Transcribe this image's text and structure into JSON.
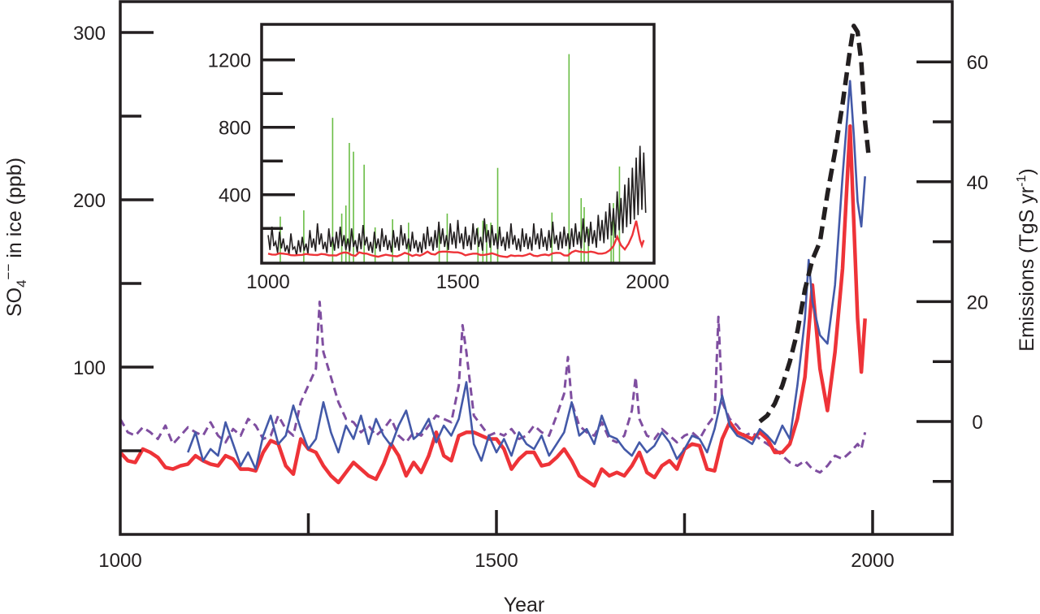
{
  "chart_data": {
    "type": "line",
    "main": {
      "xlabel": "Year",
      "ylabel_left": {
        "base": "SO",
        "sub": "4",
        "sup": "−−",
        "rest": " in ice (ppb)"
      },
      "ylabel_right": {
        "base": "Emissions (TgS yr",
        "sup": "-1",
        "rest": ")"
      },
      "xlim": [
        1000,
        2100
      ],
      "ylim_left": [
        0,
        320
      ],
      "ylim_right": [
        -19,
        70
      ],
      "x_ticks": [
        1000,
        1500,
        2000
      ],
      "x_minor_ticks": [
        1250,
        1750
      ],
      "left_ticks": [
        300,
        200,
        100
      ],
      "left_minor_ticks": [
        250,
        150,
        50
      ],
      "right_ticks": [
        60,
        40,
        20,
        0
      ],
      "right_minor_ticks": [
        50,
        30,
        10,
        -10
      ],
      "series": [
        {
          "name": "red",
          "color": "#ee3338",
          "axis": "left",
          "style": "solid-thick",
          "x": [
            1000,
            1010,
            1020,
            1030,
            1040,
            1050,
            1060,
            1070,
            1080,
            1090,
            1100,
            1110,
            1120,
            1130,
            1140,
            1150,
            1160,
            1170,
            1180,
            1190,
            1200,
            1210,
            1220,
            1230,
            1240,
            1250,
            1260,
            1270,
            1280,
            1290,
            1300,
            1310,
            1320,
            1330,
            1340,
            1350,
            1360,
            1370,
            1380,
            1390,
            1400,
            1410,
            1420,
            1430,
            1440,
            1450,
            1460,
            1470,
            1480,
            1490,
            1500,
            1510,
            1520,
            1530,
            1540,
            1550,
            1560,
            1570,
            1580,
            1590,
            1600,
            1610,
            1620,
            1630,
            1640,
            1650,
            1660,
            1670,
            1680,
            1690,
            1700,
            1710,
            1720,
            1730,
            1740,
            1750,
            1760,
            1770,
            1780,
            1790,
            1800,
            1810,
            1820,
            1830,
            1840,
            1850,
            1860,
            1870,
            1880,
            1890,
            1900,
            1910,
            1920,
            1930,
            1940,
            1950,
            1960,
            1970,
            1980,
            1985,
            1990
          ],
          "y": [
            50,
            45,
            44,
            52,
            50,
            47,
            41,
            40,
            42,
            43,
            48,
            45,
            43,
            42,
            48,
            46,
            40,
            40,
            39,
            50,
            57,
            55,
            42,
            37,
            58,
            52,
            50,
            42,
            36,
            32,
            38,
            44,
            40,
            36,
            34,
            43,
            55,
            48,
            36,
            44,
            38,
            48,
            62,
            48,
            45,
            60,
            62,
            62,
            60,
            58,
            58,
            52,
            40,
            46,
            50,
            50,
            42,
            43,
            47,
            52,
            45,
            36,
            33,
            30,
            40,
            36,
            38,
            36,
            42,
            50,
            38,
            35,
            42,
            45,
            40,
            52,
            55,
            54,
            40,
            39,
            58,
            68,
            62,
            60,
            58,
            62,
            58,
            50,
            50,
            55,
            70,
            95,
            150,
            100,
            75,
            110,
            160,
            245,
            130,
            98,
            130
          ]
        },
        {
          "name": "blue",
          "color": "#4359a8",
          "axis": "left",
          "style": "solid",
          "x": [
            1090,
            1100,
            1110,
            1120,
            1130,
            1140,
            1150,
            1160,
            1170,
            1180,
            1190,
            1200,
            1210,
            1220,
            1230,
            1240,
            1250,
            1260,
            1270,
            1280,
            1290,
            1300,
            1310,
            1320,
            1330,
            1340,
            1350,
            1360,
            1370,
            1380,
            1390,
            1400,
            1410,
            1420,
            1430,
            1440,
            1450,
            1460,
            1470,
            1480,
            1490,
            1500,
            1510,
            1520,
            1530,
            1540,
            1550,
            1560,
            1570,
            1580,
            1590,
            1600,
            1610,
            1620,
            1630,
            1640,
            1650,
            1660,
            1670,
            1680,
            1690,
            1700,
            1710,
            1720,
            1730,
            1740,
            1750,
            1760,
            1770,
            1780,
            1790,
            1800,
            1810,
            1820,
            1830,
            1840,
            1850,
            1860,
            1870,
            1880,
            1890,
            1900,
            1910,
            1915,
            1920,
            1930,
            1940,
            1950,
            1960,
            1970,
            1975,
            1980,
            1985,
            1990
          ],
          "y": [
            50,
            62,
            45,
            52,
            48,
            68,
            55,
            42,
            50,
            40,
            60,
            72,
            55,
            60,
            78,
            64,
            52,
            58,
            80,
            62,
            50,
            66,
            58,
            72,
            55,
            70,
            60,
            54,
            66,
            75,
            58,
            62,
            70,
            56,
            66,
            60,
            70,
            92,
            55,
            45,
            60,
            50,
            58,
            48,
            62,
            55,
            52,
            60,
            48,
            55,
            62,
            80,
            60,
            64,
            55,
            72,
            60,
            58,
            52,
            48,
            56,
            50,
            54,
            62,
            56,
            46,
            52,
            60,
            58,
            50,
            64,
            84,
            66,
            60,
            58,
            55,
            64,
            60,
            55,
            66,
            58,
            90,
            130,
            165,
            140,
            120,
            115,
            150,
            215,
            272,
            240,
            200,
            185,
            215
          ]
        },
        {
          "name": "purple",
          "color": "#7f4ea0",
          "axis": "left",
          "style": "dashed",
          "x": [
            1000,
            1010,
            1020,
            1030,
            1040,
            1050,
            1060,
            1070,
            1080,
            1090,
            1100,
            1110,
            1120,
            1130,
            1140,
            1150,
            1160,
            1170,
            1180,
            1190,
            1200,
            1210,
            1220,
            1230,
            1240,
            1250,
            1260,
            1265,
            1270,
            1280,
            1290,
            1300,
            1310,
            1320,
            1330,
            1340,
            1350,
            1360,
            1370,
            1380,
            1390,
            1400,
            1410,
            1420,
            1430,
            1440,
            1450,
            1455,
            1460,
            1470,
            1480,
            1490,
            1500,
            1510,
            1520,
            1530,
            1540,
            1550,
            1560,
            1570,
            1580,
            1590,
            1595,
            1600,
            1610,
            1620,
            1630,
            1640,
            1650,
            1660,
            1670,
            1680,
            1685,
            1690,
            1700,
            1710,
            1720,
            1730,
            1740,
            1750,
            1760,
            1770,
            1780,
            1790,
            1795,
            1800,
            1810,
            1820,
            1830,
            1840,
            1850,
            1860,
            1870,
            1880,
            1890,
            1900,
            1910,
            1920,
            1930,
            1940,
            1950,
            1960,
            1970,
            1980,
            1985,
            1990
          ],
          "y": [
            70,
            62,
            60,
            65,
            62,
            58,
            66,
            55,
            60,
            65,
            62,
            60,
            68,
            60,
            56,
            64,
            60,
            70,
            66,
            58,
            60,
            72,
            64,
            60,
            80,
            90,
            100,
            140,
            110,
            95,
            80,
            70,
            68,
            62,
            66,
            60,
            64,
            70,
            60,
            56,
            62,
            60,
            66,
            72,
            70,
            68,
            90,
            126,
            110,
            72,
            66,
            60,
            62,
            60,
            64,
            58,
            60,
            66,
            62,
            60,
            72,
            85,
            107,
            80,
            66,
            62,
            60,
            68,
            58,
            56,
            60,
            75,
            95,
            70,
            60,
            58,
            64,
            60,
            56,
            60,
            62,
            58,
            66,
            72,
            131,
            80,
            70,
            66,
            60,
            62,
            58,
            55,
            52,
            48,
            44,
            42,
            45,
            40,
            38,
            42,
            48,
            46,
            50,
            55,
            52,
            62
          ]
        },
        {
          "name": "emissions",
          "color": "#231f20",
          "axis": "right",
          "style": "dashed-thick",
          "x": [
            1850,
            1860,
            1870,
            1880,
            1890,
            1900,
            1910,
            1920,
            1930,
            1940,
            1950,
            1960,
            1970,
            1975,
            1980,
            1985,
            1990,
            1995
          ],
          "y": [
            0,
            1,
            3,
            6,
            10,
            15,
            22,
            27,
            30,
            38,
            45,
            53,
            62,
            66,
            65,
            60,
            50,
            44
          ]
        }
      ]
    },
    "inset": {
      "xlim": [
        1000,
        2000
      ],
      "ylim": [
        0,
        1420
      ],
      "x_ticks": [
        1000,
        1500,
        2000
      ],
      "y_ticks": [
        1200,
        800,
        400
      ],
      "y_minor_ticks": [
        1000,
        600,
        200
      ],
      "black_series": {
        "name": "black",
        "color": "#231f20",
        "x_start": 1000,
        "x_step": 10,
        "y": [
          160,
          210,
          120,
          180,
          140,
          100,
          170,
          90,
          130,
          150,
          110,
          190,
          140,
          230,
          170,
          120,
          200,
          150,
          180,
          210,
          160,
          140,
          200,
          130,
          170,
          220,
          150,
          120,
          180,
          140,
          200,
          160,
          130,
          190,
          150,
          220,
          170,
          140,
          180,
          130,
          120,
          170,
          210,
          150,
          190,
          240,
          200,
          160,
          230,
          180,
          250,
          170,
          210,
          160,
          230,
          200,
          150,
          260,
          190,
          220,
          170,
          210,
          150,
          180,
          230,
          160,
          140,
          200,
          170,
          150,
          230,
          170,
          200,
          150,
          190,
          240,
          160,
          180,
          210,
          170,
          200,
          230,
          180,
          260,
          210,
          240,
          190,
          280,
          250,
          300,
          350,
          320,
          420,
          380,
          460,
          500,
          560,
          620,
          690,
          650
        ]
      },
      "green_spikes": {
        "color": "#6abd45",
        "x": [
          1032,
          1094,
          1170,
          1194,
          1205,
          1214,
          1225,
          1253,
          1282,
          1328,
          1370,
          1451,
          1472,
          1553,
          1566,
          1576,
          1587,
          1605,
          1748,
          1793,
          1825,
          1833,
          1844,
          1904,
          1910,
          1926
        ],
        "y": [
          270,
          307,
          856,
          288,
          336,
          707,
          655,
          578,
          206,
          254,
          234,
          198,
          288,
          206,
          246,
          225,
          234,
          559,
          294,
          1234,
          379,
          326,
          198,
          240,
          350,
          567
        ]
      },
      "red_series_ref": "red"
    }
  }
}
